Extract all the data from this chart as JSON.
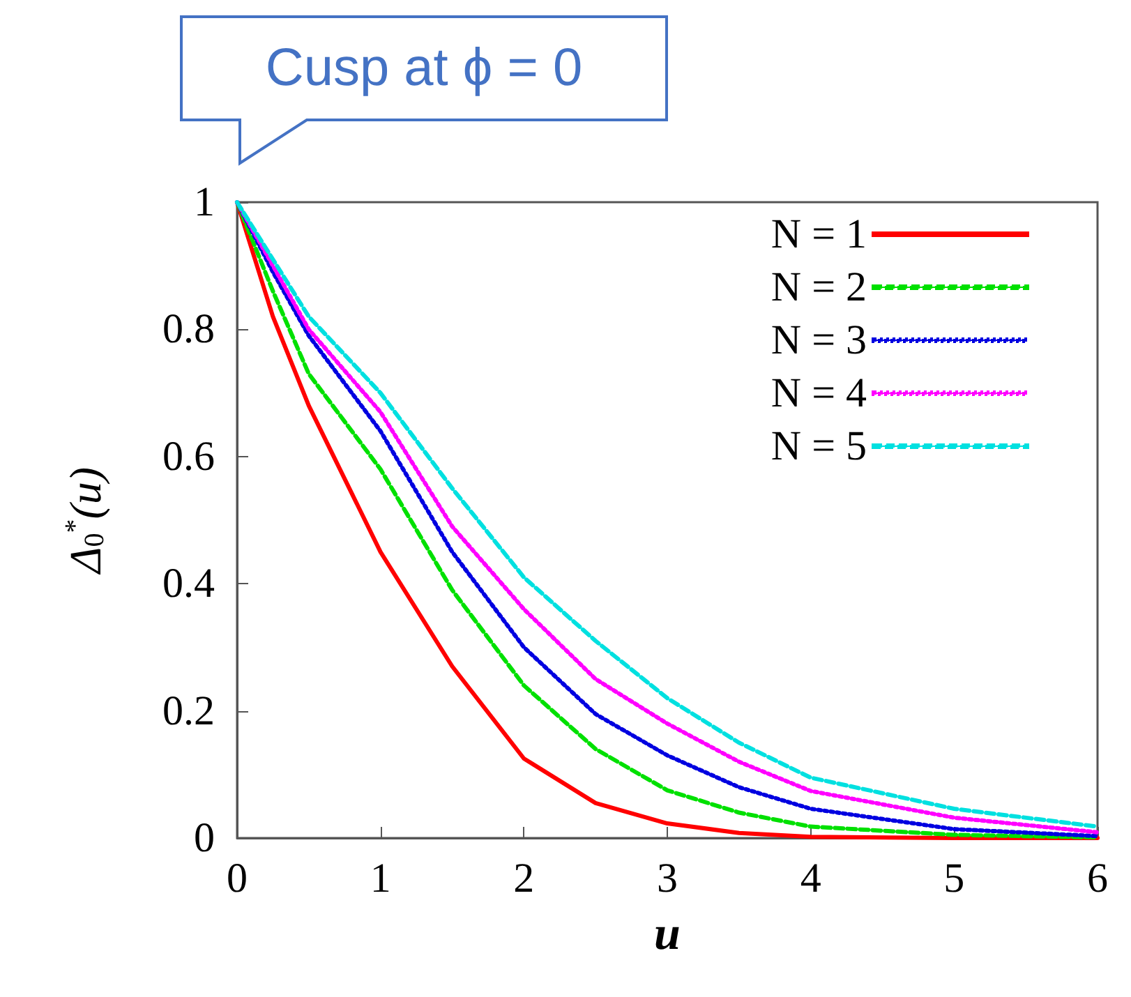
{
  "chart_data": {
    "type": "line",
    "xlabel": "u",
    "ylabel": "Δ$_{0}$$^{*}$(u)",
    "annotations": [
      {
        "text": "Cusp at ϕ = 0",
        "x": 0,
        "y": 1
      }
    ],
    "x": [
      0,
      0.25,
      0.5,
      1,
      1.5,
      2,
      2.5,
      3,
      3.5,
      4,
      5,
      6
    ],
    "series": [
      {
        "name": "N = 1",
        "color": "#ff0000",
        "line_style": "solid",
        "values": [
          1,
          0.82,
          0.68,
          0.45,
          0.27,
          0.125,
          0.055,
          0.023,
          0.008,
          0.002,
          0,
          0
        ]
      },
      {
        "name": "N = 2",
        "color": "#00e000",
        "line_style": "dashed",
        "values": [
          1,
          0.86,
          0.73,
          0.58,
          0.39,
          0.24,
          0.14,
          0.075,
          0.04,
          0.018,
          0.005,
          0.001
        ]
      },
      {
        "name": "N = 3",
        "color": "#0000e0",
        "line_style": "dotted",
        "values": [
          1,
          0.89,
          0.79,
          0.64,
          0.45,
          0.3,
          0.195,
          0.13,
          0.08,
          0.046,
          0.014,
          0.003
        ]
      },
      {
        "name": "N = 4",
        "color": "#ff00ff",
        "line_style": "dotted",
        "values": [
          1,
          0.9,
          0.8,
          0.67,
          0.49,
          0.36,
          0.25,
          0.18,
          0.12,
          0.074,
          0.032,
          0.009
        ]
      },
      {
        "name": "N = 5",
        "color": "#00e0e0",
        "line_style": "dashed",
        "values": [
          1,
          0.91,
          0.82,
          0.7,
          0.55,
          0.41,
          0.31,
          0.22,
          0.15,
          0.095,
          0.046,
          0.018
        ]
      }
    ],
    "xlim": [
      0,
      6
    ],
    "xticks": [
      0,
      1,
      2,
      3,
      4,
      5,
      6
    ],
    "ylim": [
      0,
      1
    ],
    "yticks": [
      0,
      0.2,
      0.4,
      0.6,
      0.8,
      1
    ],
    "grid": false,
    "legend": "top right",
    "marker": "none"
  }
}
